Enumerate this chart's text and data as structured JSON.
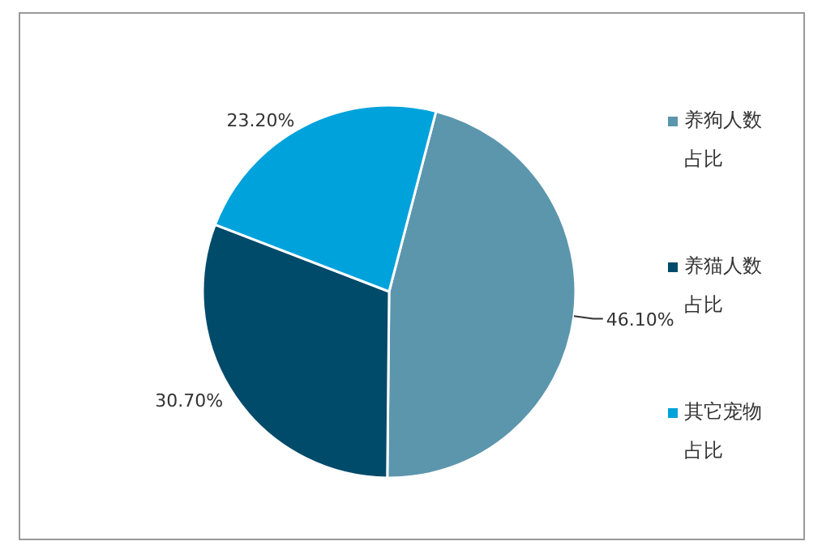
{
  "chart_data": {
    "type": "pie",
    "categories": [
      "养狗人数占比",
      "养猫人数占比",
      "其它宠物占比"
    ],
    "values": [
      46.1,
      30.7,
      23.2
    ],
    "colors": [
      "#5b96ad",
      "#004a6a",
      "#00a2dc"
    ],
    "value_labels": [
      "46.10%",
      "30.70%",
      "23.20%"
    ],
    "legend": "right"
  }
}
